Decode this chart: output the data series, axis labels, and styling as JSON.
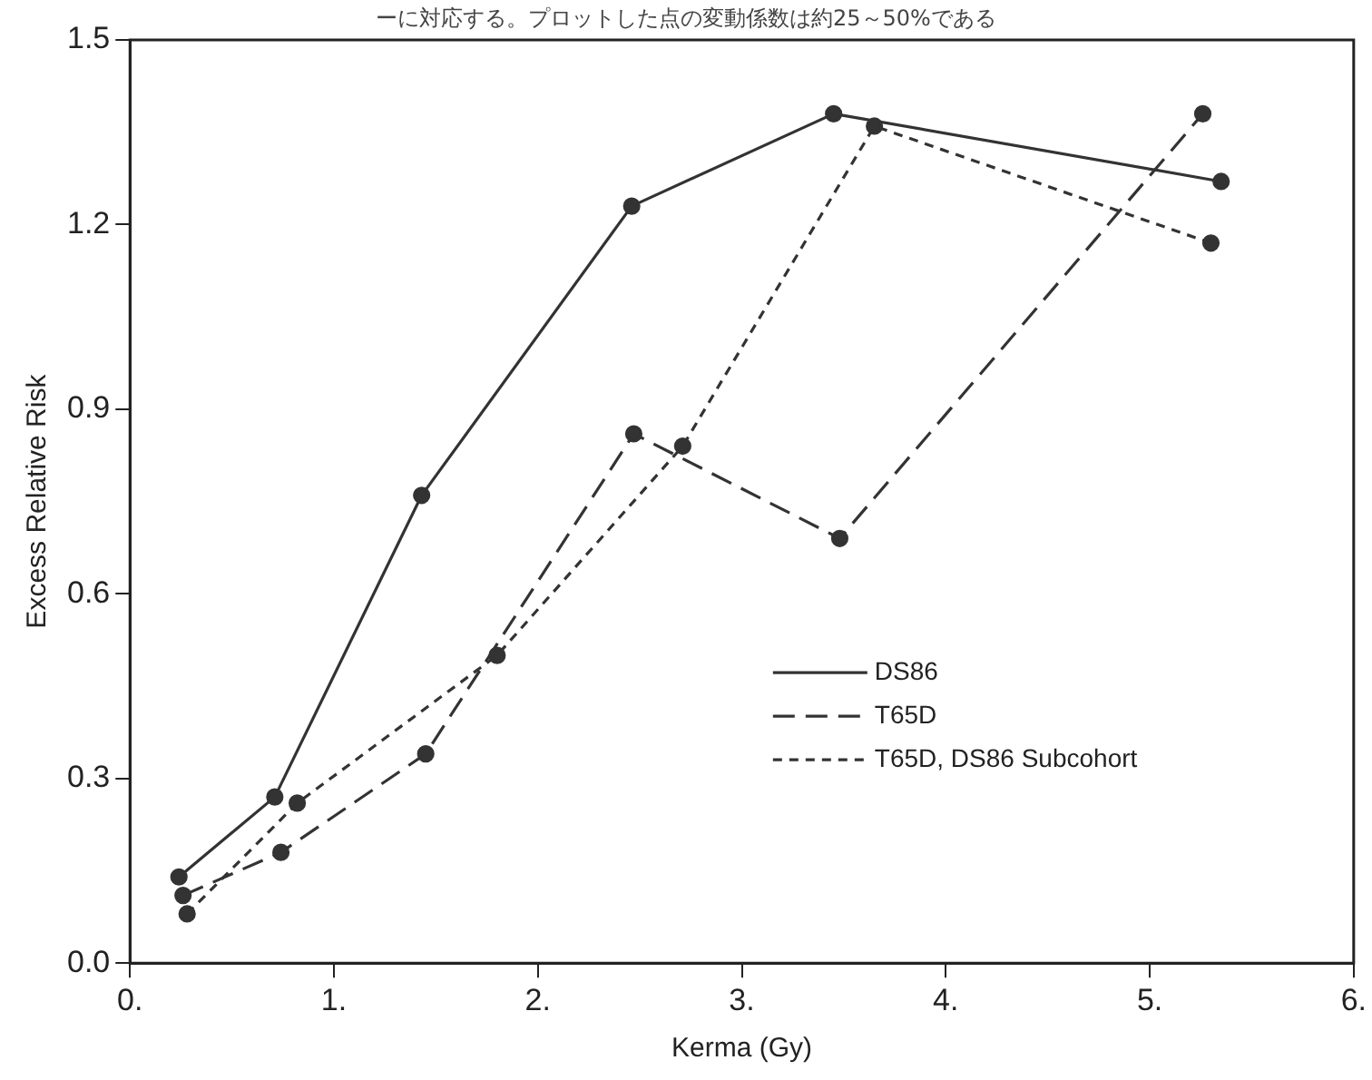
{
  "chart_data": {
    "type": "line",
    "xlabel": "Kerma (Gy)",
    "ylabel": "Excess Relative Risk",
    "annotations": [
      "ーに対応する。プロットした点の変動係数は約25～50%である"
    ],
    "xlim": [
      0,
      6
    ],
    "xticks": [
      {
        "value": 0,
        "label": "0."
      },
      {
        "value": 1,
        "label": "1."
      },
      {
        "value": 2,
        "label": "2."
      },
      {
        "value": 3,
        "label": "3."
      },
      {
        "value": 4,
        "label": "4."
      },
      {
        "value": 5,
        "label": "5."
      },
      {
        "value": 6,
        "label": "6."
      }
    ],
    "ylim": [
      0,
      1.5
    ],
    "yticks": [
      {
        "value": 0,
        "label": "0.0"
      },
      {
        "value": 0.3,
        "label": "0.3"
      },
      {
        "value": 0.6,
        "label": "0.6"
      },
      {
        "value": 0.9,
        "label": "0.9"
      },
      {
        "value": 1.2,
        "label": "1.2"
      },
      {
        "value": 1.5,
        "label": "1.5"
      }
    ],
    "grid": false,
    "legend": "bottom right",
    "marker": "circle",
    "series": [
      {
        "name": "DS86",
        "color": "#333333",
        "line_style": "solid",
        "x": [
          0.24,
          0.71,
          1.43,
          2.46,
          3.45,
          5.35
        ],
        "values": [
          0.14,
          0.27,
          0.76,
          1.23,
          1.38,
          1.27
        ]
      },
      {
        "name": "T65D",
        "color": "#333333",
        "line_style": "dashed",
        "x": [
          0.26,
          0.74,
          1.45,
          2.47,
          3.48,
          5.26
        ],
        "values": [
          0.11,
          0.18,
          0.34,
          0.86,
          0.69,
          1.38
        ]
      },
      {
        "name": "T65D, DS86 Subcohort",
        "color": "#333333",
        "line_style": "dotted",
        "x": [
          0.28,
          0.82,
          1.8,
          2.71,
          3.65,
          5.3
        ],
        "values": [
          0.08,
          0.26,
          0.5,
          0.84,
          1.36,
          1.17
        ]
      }
    ]
  }
}
